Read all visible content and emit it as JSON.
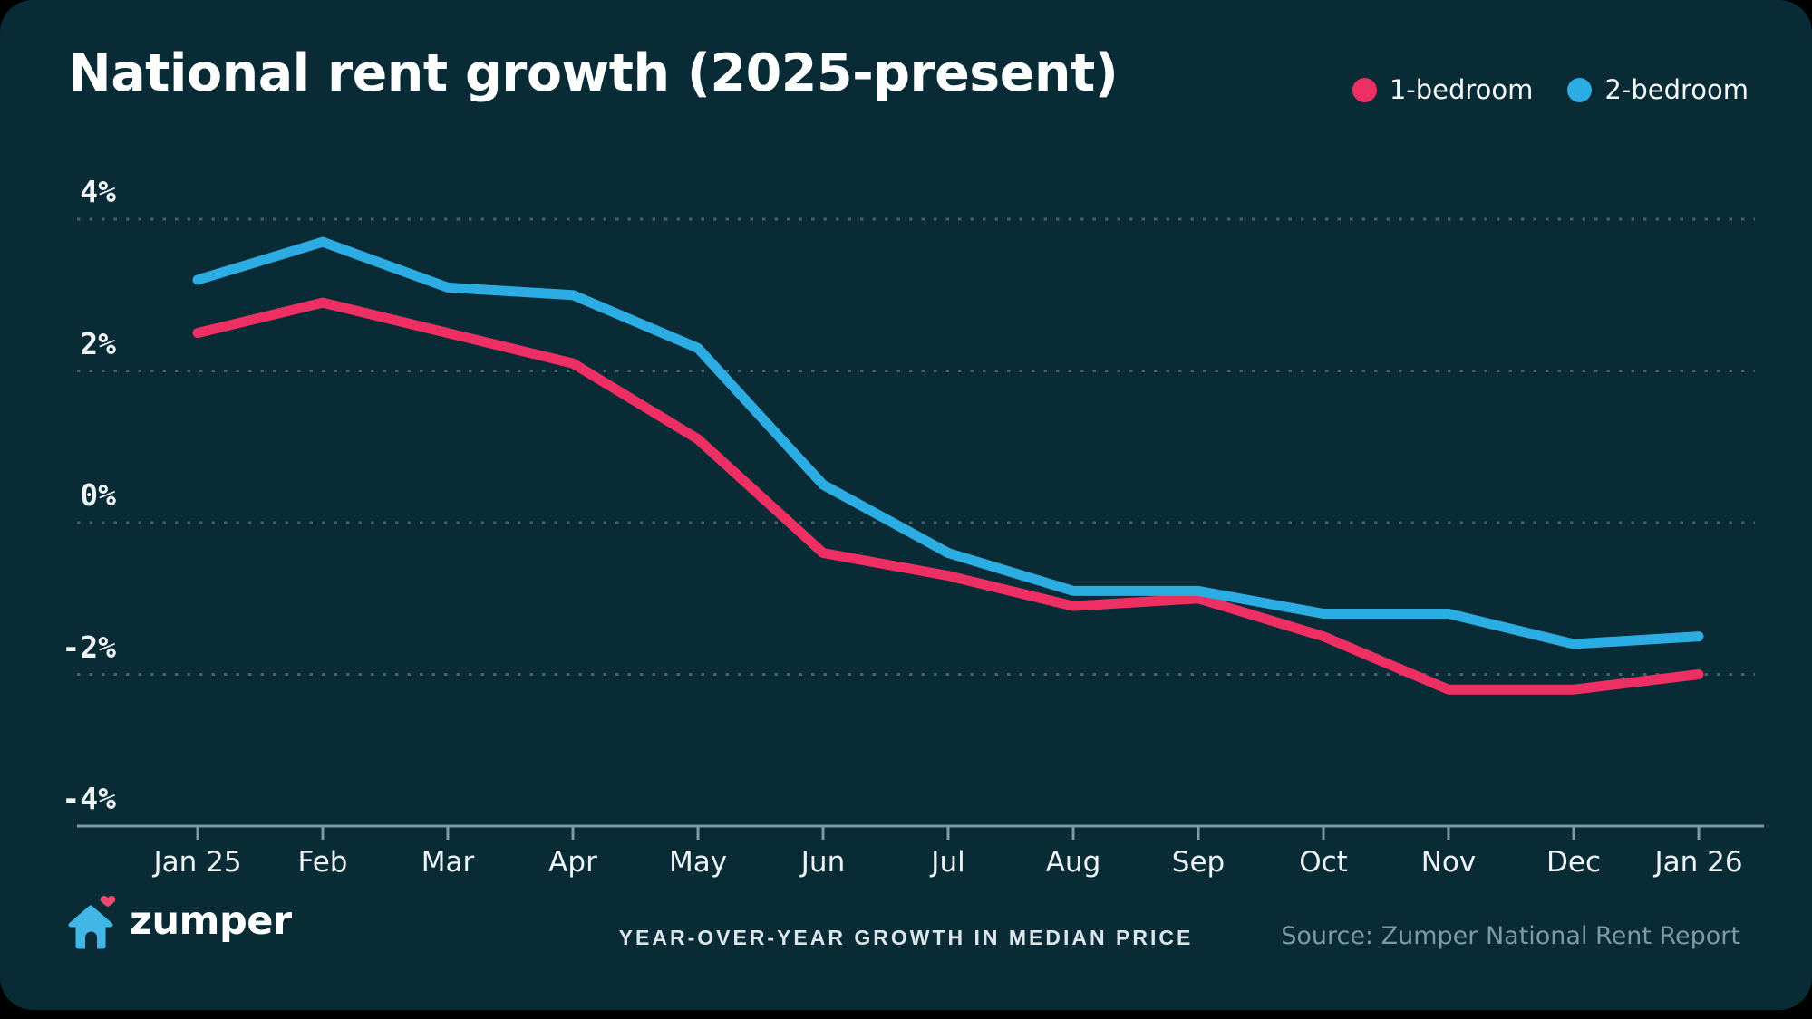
{
  "title": "National rent growth (2025-present)",
  "footer": {
    "brand": "zumper",
    "caption": "YEAR-OVER-YEAR GROWTH IN MEDIAN PRICE",
    "source": "Source: Zumper National Rent Report"
  },
  "colors": {
    "background": "#000000",
    "card": "#082b36",
    "gridline": "#42626e",
    "axis": "#7e98a4",
    "axis_label": "#eef4f6",
    "caption_text": "#dce6ea",
    "source_text": "#7c9aa9",
    "logo_house": "#41b7e8",
    "logo_heart": "#ea4a6e"
  },
  "chart_data": {
    "type": "line",
    "title": "National rent growth (2025-present)",
    "categories": [
      "Jan 25",
      "Feb",
      "Mar",
      "Apr",
      "May",
      "Jun",
      "Jul",
      "Aug",
      "Sep",
      "Oct",
      "Nov",
      "Dec",
      "Jan 26"
    ],
    "series": [
      {
        "name": "1-bedroom",
        "color": "#ee2f63",
        "values": [
          2.5,
          2.9,
          2.5,
          2.1,
          1.1,
          -0.4,
          -0.7,
          -1.1,
          -1.0,
          -1.5,
          -2.2,
          -2.2,
          -2.0
        ]
      },
      {
        "name": "2-bedroom",
        "color": "#2bace2",
        "values": [
          3.2,
          3.7,
          3.1,
          3.0,
          2.3,
          0.5,
          -0.4,
          -0.9,
          -0.9,
          -1.2,
          -1.2,
          -1.6,
          -1.5
        ]
      }
    ],
    "yticks": [
      {
        "label": "4%",
        "value": 4
      },
      {
        "label": "2%",
        "value": 2
      },
      {
        "label": "0%",
        "value": 0
      },
      {
        "label": "-2%",
        "value": -2
      },
      {
        "label": "-4%",
        "value": -4
      }
    ],
    "ylim": [
      -4,
      4
    ],
    "ylabel": "",
    "xlabel": "",
    "grid": "horizontal-dotted",
    "legend_position": "top-right"
  }
}
